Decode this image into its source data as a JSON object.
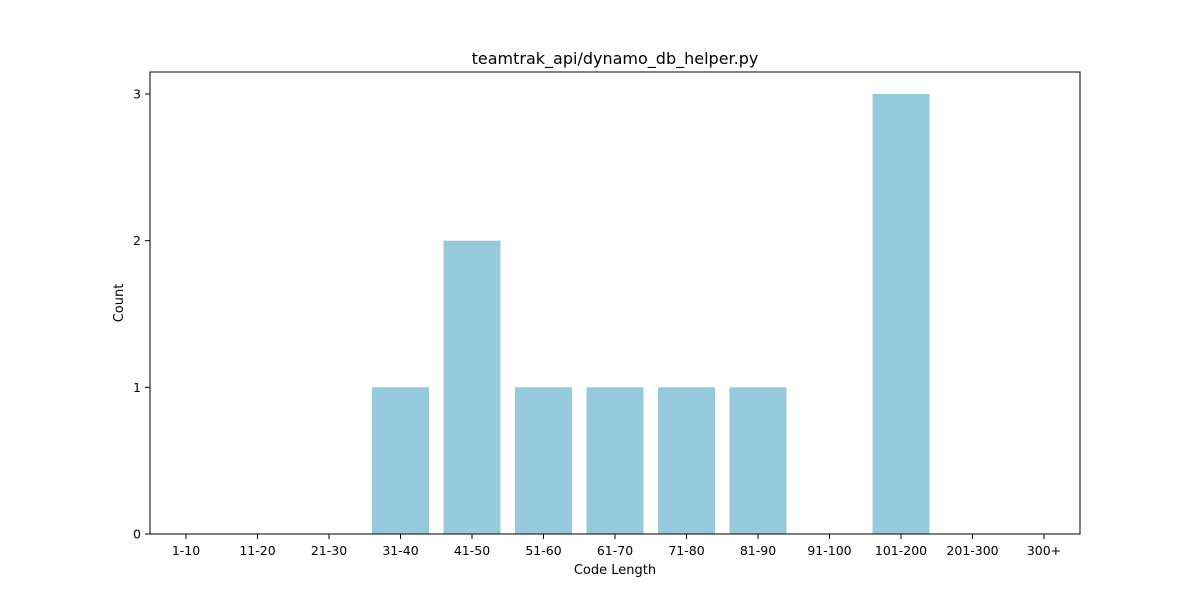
{
  "chart_data": {
    "type": "bar",
    "title": "teamtrak_api/dynamo_db_helper.py",
    "xlabel": "Code Length",
    "ylabel": "Count",
    "categories": [
      "1-10",
      "11-20",
      "21-30",
      "31-40",
      "41-50",
      "51-60",
      "61-70",
      "71-80",
      "81-90",
      "91-100",
      "101-200",
      "201-300",
      "300+"
    ],
    "values": [
      0,
      0,
      0,
      1,
      2,
      1,
      1,
      1,
      1,
      0,
      3,
      0,
      0
    ],
    "ylim": [
      0,
      3.15
    ],
    "yticks": [
      0,
      1,
      2,
      3
    ],
    "bar_color": "#96c9dc",
    "grid": false,
    "legend": "none"
  }
}
